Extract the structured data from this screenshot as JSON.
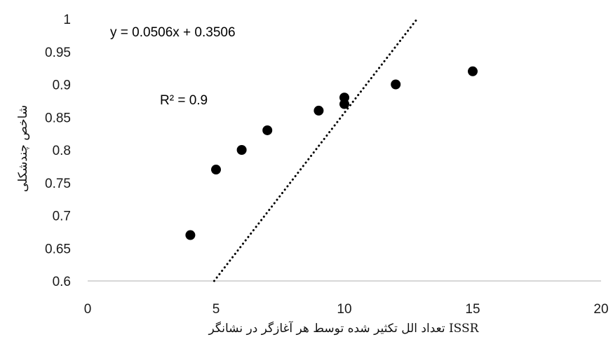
{
  "chart_data": {
    "type": "scatter",
    "title": "",
    "xlabel": "تعداد الل تکثیر شده توسط هر آغازگر در نشانگر  ISSR",
    "ylabel": "شاخص چندشکلی",
    "xlim": [
      0,
      20
    ],
    "ylim": [
      0.6,
      1
    ],
    "x_ticks": [
      0,
      5,
      10,
      15,
      20
    ],
    "x_tick_labels": [
      "0",
      "5",
      "10",
      "15",
      "20"
    ],
    "y_ticks": [
      0.6,
      0.65,
      0.7,
      0.75,
      0.8,
      0.85,
      0.9,
      0.95,
      1
    ],
    "y_tick_labels": [
      "0.6",
      "0.65",
      "0.7",
      "0.75",
      "0.8",
      "0.85",
      "0.9",
      "0.95",
      "1"
    ],
    "grid": false,
    "legend": "none",
    "points": [
      {
        "x": 4,
        "y": 0.67
      },
      {
        "x": 5,
        "y": 0.77
      },
      {
        "x": 6,
        "y": 0.8
      },
      {
        "x": 7,
        "y": 0.83
      },
      {
        "x": 9,
        "y": 0.86
      },
      {
        "x": 10,
        "y": 0.87
      },
      {
        "x": 10,
        "y": 0.88
      },
      {
        "x": 12,
        "y": 0.9
      },
      {
        "x": 15,
        "y": 0.92
      }
    ],
    "trendline": {
      "type": "linear",
      "slope": 0.0506,
      "intercept": 0.3506,
      "style": "dotted",
      "equation_label": "y = 0.0506x + 0.3506",
      "r2_label": "R² = 0.9"
    },
    "colors": {
      "points": "#000000",
      "trendline": "#000000",
      "axis": "#bfbfbf",
      "text": "#1a1a1a"
    }
  }
}
